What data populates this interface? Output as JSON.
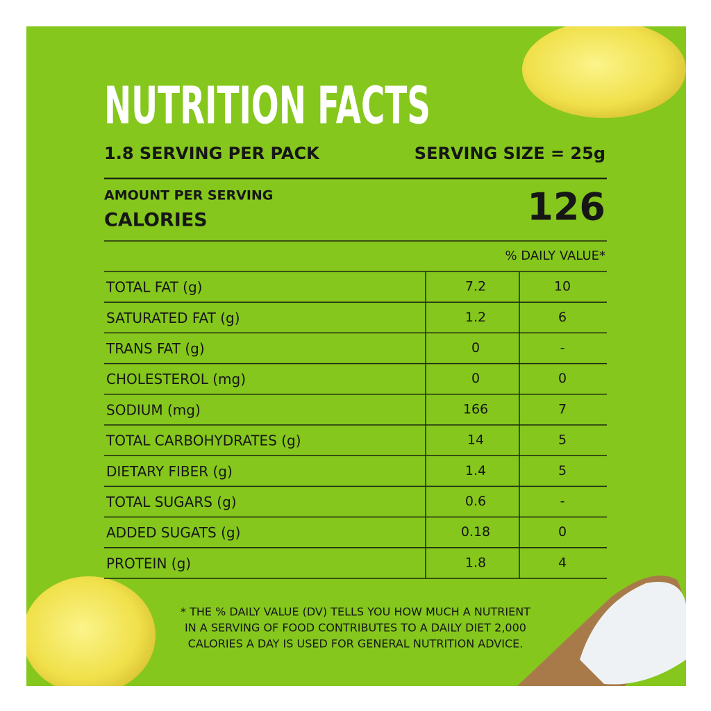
{
  "header": {
    "title": "NUTRITION FACTS",
    "servings": "1.8 SERVING PER PACK",
    "serving_size": "SERVING SIZE = 25g"
  },
  "calories": {
    "label_top": "AMOUNT PER SERVING",
    "label": "CALORIES",
    "value": "126"
  },
  "table": {
    "header": "% DAILY VALUE*",
    "rows": [
      [
        "TOTAL FAT (g)",
        "7.2",
        "10"
      ],
      [
        "SATURATED FAT (g)",
        "1.2",
        "6"
      ],
      [
        "TRANS FAT (g)",
        "0",
        "-"
      ],
      [
        "CHOLESTEROL (mg)",
        "0",
        "0"
      ],
      [
        "SODIUM (mg)",
        "166",
        "7"
      ],
      [
        "TOTAL CARBOHYDRATES (g)",
        "14",
        "5"
      ],
      [
        "DIETARY FIBER (g)",
        "1.4",
        "5"
      ],
      [
        "TOTAL SUGARS (g)",
        "0.6",
        "-"
      ],
      [
        "ADDED SUGATS (g)",
        "0.18",
        "0"
      ],
      [
        "PROTEIN (g)",
        "1.8",
        "4"
      ]
    ]
  },
  "footnote": {
    "lines": [
      "* THE % DAILY VALUE (DV) TELLS YOU HOW MUCH A NUTRIENT",
      "IN A SERVING OF FOOD CONTRIBUTES TO A DAILY DIET 2,000",
      "CALORIES A DAY IS USED FOR GENERAL NUTRITION ADVICE."
    ]
  }
}
